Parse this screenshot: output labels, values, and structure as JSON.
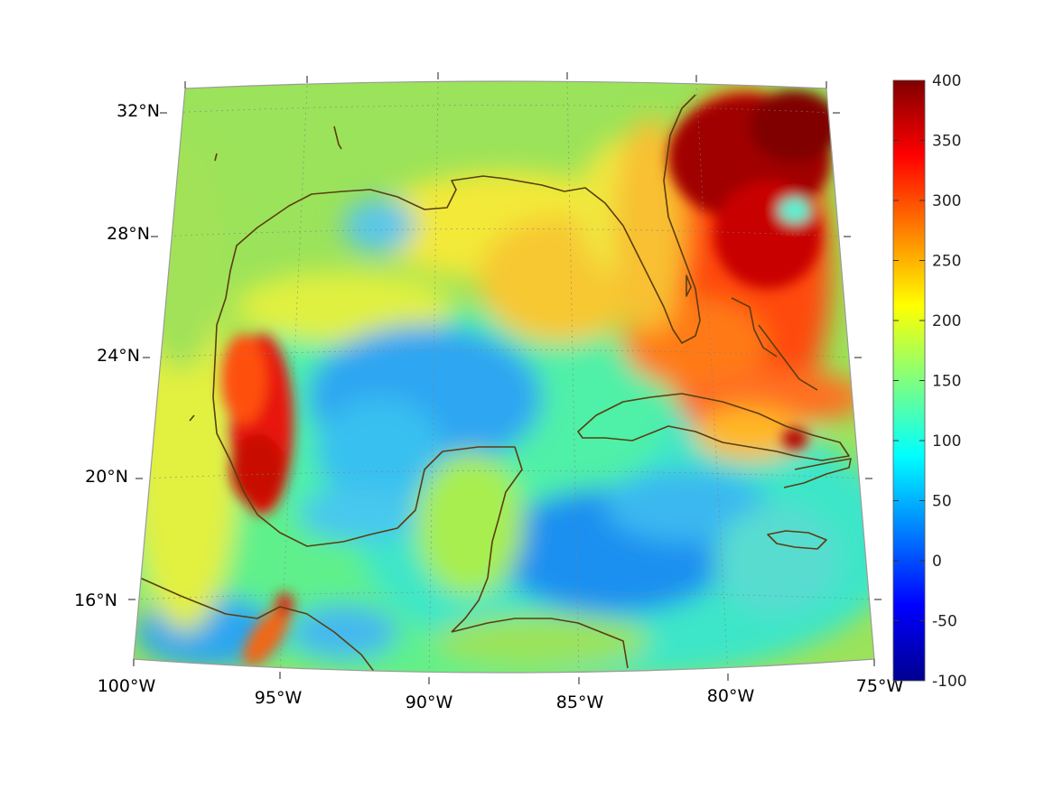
{
  "map": {
    "projection": "lambert-conformal-conic",
    "lon_range": [
      -100,
      -75
    ],
    "lat_range": [
      14,
      33
    ],
    "grid": true,
    "lon_ticks": [
      {
        "lon": -100,
        "label": "100°W"
      },
      {
        "lon": -95,
        "label": "95°W"
      },
      {
        "lon": -90,
        "label": "90°W"
      },
      {
        "lon": -85,
        "label": "85°W"
      },
      {
        "lon": -80,
        "label": "80°W"
      },
      {
        "lon": -75,
        "label": "75°W"
      }
    ],
    "lat_ticks": [
      {
        "lat": 16,
        "label": "16°N"
      },
      {
        "lat": 20,
        "label": "20°N"
      },
      {
        "lat": 24,
        "label": "24°N"
      },
      {
        "lat": 28,
        "label": "28°N"
      },
      {
        "lat": 32,
        "label": "32°N"
      }
    ],
    "coastline_color": "#5a3e10",
    "field_features": [
      {
        "name": "hurricane-core",
        "lon": -77.5,
        "lat": 28.9,
        "value": 90
      },
      {
        "name": "atlantic-high",
        "lon": -78.5,
        "lat": 30.0,
        "value": 400
      },
      {
        "name": "mexico-high",
        "lon": -96.0,
        "lat": 22.0,
        "value": 330
      },
      {
        "name": "gulf-low",
        "lon": -89.0,
        "lat": 23.0,
        "value": 50
      },
      {
        "name": "caribbean-low",
        "lon": -84.0,
        "lat": 17.3,
        "value": 40
      }
    ]
  },
  "colorbar": {
    "colormap": "jet",
    "min": -100,
    "max": 400,
    "ticks": [
      "400",
      "350",
      "300",
      "250",
      "200",
      "150",
      "100",
      "50",
      "0",
      "-50",
      "-100"
    ]
  }
}
